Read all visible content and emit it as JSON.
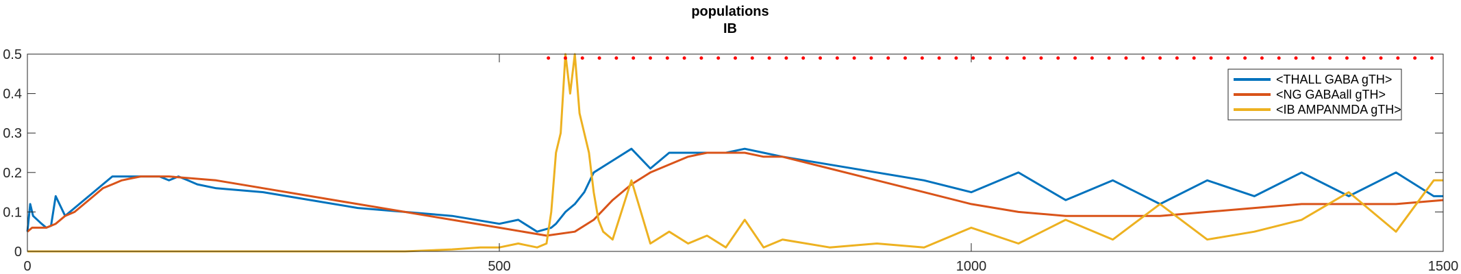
{
  "chart_data": {
    "type": "line",
    "title": "populations",
    "subtitle": "IB",
    "xlim": [
      0,
      1500
    ],
    "ylim": [
      0,
      0.5
    ],
    "xticks": [
      0,
      500,
      1000,
      1500
    ],
    "yticks": [
      0,
      0.1,
      0.2,
      0.3,
      0.4,
      0.5
    ],
    "xtick_labels": [
      "0",
      "500",
      "1000",
      "1500"
    ],
    "ytick_labels": [
      "0",
      "0.1",
      "0.2",
      "0.3",
      "0.4",
      "0.5"
    ],
    "grid": false,
    "legend_position": "top-right",
    "series": [
      {
        "name": "<THALL GABA gTH>",
        "color": "#0072BD",
        "x": [
          0,
          3,
          6,
          15,
          20,
          25,
          30,
          40,
          50,
          60,
          70,
          80,
          90,
          100,
          110,
          120,
          130,
          140,
          150,
          160,
          170,
          180,
          200,
          250,
          300,
          350,
          400,
          450,
          500,
          520,
          540,
          555,
          560,
          570,
          580,
          590,
          600,
          620,
          640,
          660,
          680,
          700,
          720,
          740,
          760,
          780,
          800,
          850,
          900,
          950,
          1000,
          1050,
          1100,
          1150,
          1200,
          1250,
          1300,
          1350,
          1400,
          1450,
          1490,
          1500
        ],
        "y": [
          0.05,
          0.12,
          0.09,
          0.07,
          0.06,
          0.065,
          0.14,
          0.09,
          0.11,
          0.13,
          0.15,
          0.17,
          0.19,
          0.19,
          0.19,
          0.19,
          0.19,
          0.19,
          0.18,
          0.19,
          0.18,
          0.17,
          0.16,
          0.15,
          0.13,
          0.11,
          0.1,
          0.09,
          0.07,
          0.08,
          0.05,
          0.06,
          0.07,
          0.1,
          0.12,
          0.15,
          0.2,
          0.23,
          0.26,
          0.21,
          0.25,
          0.25,
          0.25,
          0.25,
          0.26,
          0.25,
          0.24,
          0.22,
          0.2,
          0.18,
          0.15,
          0.2,
          0.13,
          0.18,
          0.12,
          0.18,
          0.14,
          0.2,
          0.14,
          0.2,
          0.14,
          0.14
        ]
      },
      {
        "name": "<NG GABAall gTH>",
        "color": "#D95319",
        "x": [
          0,
          5,
          10,
          20,
          30,
          40,
          50,
          60,
          70,
          80,
          90,
          100,
          110,
          120,
          130,
          140,
          150,
          200,
          250,
          300,
          350,
          400,
          450,
          500,
          550,
          580,
          600,
          620,
          640,
          660,
          680,
          700,
          720,
          740,
          760,
          780,
          800,
          850,
          900,
          950,
          1000,
          1050,
          1100,
          1150,
          1200,
          1250,
          1300,
          1350,
          1400,
          1450,
          1500
        ],
        "y": [
          0.05,
          0.06,
          0.06,
          0.06,
          0.07,
          0.09,
          0.1,
          0.12,
          0.14,
          0.16,
          0.17,
          0.18,
          0.185,
          0.19,
          0.19,
          0.19,
          0.19,
          0.18,
          0.16,
          0.14,
          0.12,
          0.1,
          0.08,
          0.06,
          0.04,
          0.05,
          0.08,
          0.13,
          0.17,
          0.2,
          0.22,
          0.24,
          0.25,
          0.25,
          0.25,
          0.24,
          0.24,
          0.21,
          0.18,
          0.15,
          0.12,
          0.1,
          0.09,
          0.09,
          0.09,
          0.1,
          0.11,
          0.12,
          0.12,
          0.12,
          0.13
        ]
      },
      {
        "name": "<IB AMPANMDA gTH>",
        "color": "#EDB120",
        "x": [
          0,
          100,
          200,
          300,
          400,
          450,
          480,
          500,
          520,
          540,
          550,
          555,
          560,
          565,
          570,
          575,
          580,
          585,
          590,
          595,
          600,
          605,
          610,
          620,
          640,
          660,
          680,
          700,
          720,
          740,
          760,
          780,
          800,
          850,
          900,
          950,
          1000,
          1050,
          1100,
          1150,
          1200,
          1250,
          1300,
          1350,
          1400,
          1450,
          1490,
          1500
        ],
        "y": [
          0,
          0,
          0,
          0,
          0,
          0.005,
          0.01,
          0.01,
          0.02,
          0.01,
          0.02,
          0.1,
          0.25,
          0.3,
          0.5,
          0.4,
          0.5,
          0.35,
          0.3,
          0.25,
          0.15,
          0.08,
          0.05,
          0.03,
          0.18,
          0.02,
          0.05,
          0.02,
          0.04,
          0.01,
          0.08,
          0.01,
          0.03,
          0.01,
          0.02,
          0.01,
          0.06,
          0.02,
          0.08,
          0.03,
          0.12,
          0.03,
          0.05,
          0.08,
          0.15,
          0.05,
          0.18,
          0.18
        ]
      }
    ],
    "event_markers": {
      "color": "#FF0000",
      "y": 0.49,
      "x": [
        552,
        570,
        588,
        606,
        624,
        642,
        660,
        678,
        696,
        714,
        732,
        750,
        768,
        786,
        804,
        822,
        840,
        858,
        876,
        894,
        912,
        930,
        948,
        966,
        984,
        1002,
        1020,
        1038,
        1056,
        1074,
        1092,
        1110,
        1128,
        1146,
        1164,
        1182,
        1200,
        1218,
        1236,
        1254,
        1272,
        1290,
        1308,
        1326,
        1344,
        1362,
        1380,
        1398,
        1416,
        1434,
        1452,
        1470,
        1488
      ]
    }
  }
}
